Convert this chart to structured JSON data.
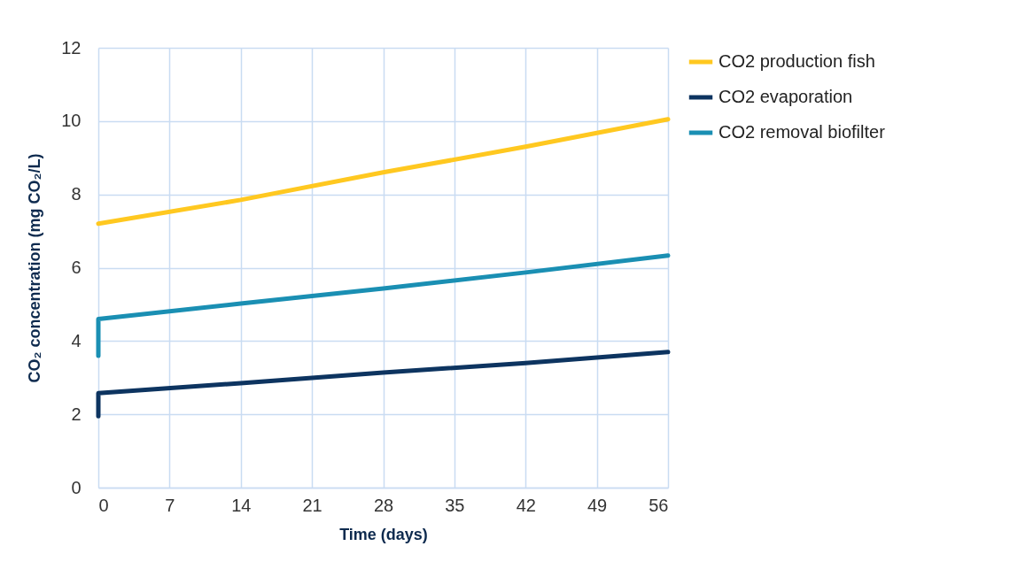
{
  "chart_data": {
    "type": "line",
    "xlabel": "Time (days)",
    "ylabel": "CO₂ concentration (mg CO₂/L)",
    "xlim": [
      0,
      56
    ],
    "xticks": [
      0,
      7,
      14,
      21,
      28,
      35,
      42,
      49,
      56
    ],
    "ylim": [
      0,
      12
    ],
    "yticks": [
      0,
      2,
      4,
      6,
      8,
      10,
      12
    ],
    "grid": true,
    "legend": "right",
    "marker": "none",
    "line_style": "solid",
    "series": [
      {
        "name": "CO2 production fish",
        "color": "#ffc820",
        "x": [
          0,
          14,
          28,
          42,
          56
        ],
        "values": [
          7.2,
          7.85,
          8.6,
          9.3,
          10.05
        ]
      },
      {
        "name": "CO2 evaporation",
        "color": "#0d3460",
        "x": [
          0,
          0,
          14,
          28,
          42,
          56
        ],
        "values": [
          1.95,
          2.58,
          2.85,
          3.14,
          3.4,
          3.7
        ]
      },
      {
        "name": "CO2 removal biofilter",
        "color": "#1a8fb3",
        "x": [
          0,
          0,
          14,
          28,
          42,
          56
        ],
        "values": [
          3.6,
          4.6,
          5.02,
          5.43,
          5.87,
          6.33
        ]
      }
    ]
  }
}
